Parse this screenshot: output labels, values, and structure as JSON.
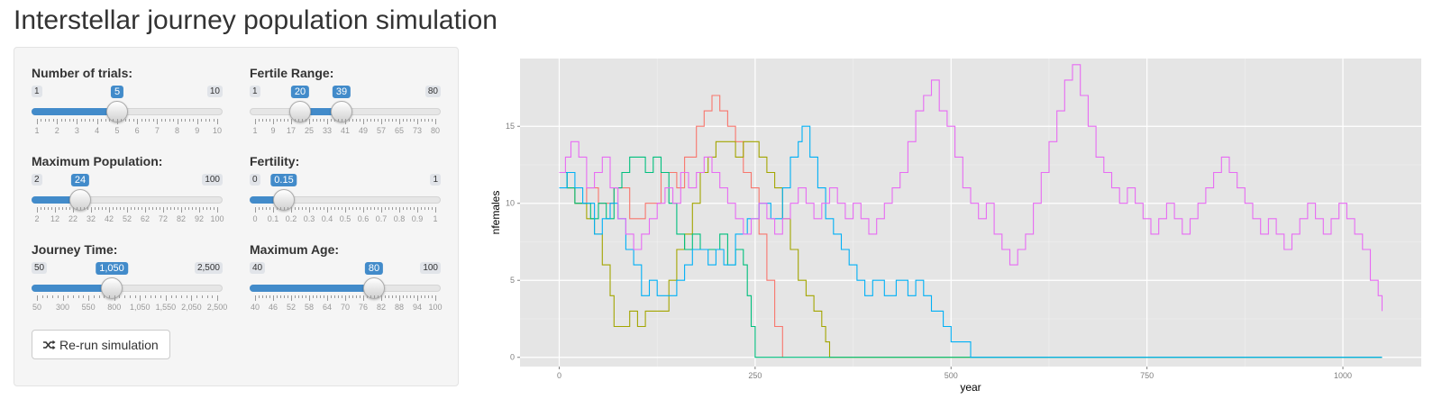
{
  "page": {
    "title": "Interstellar journey population simulation"
  },
  "controls": {
    "trials": {
      "label": "Number of trials:",
      "min_label": "1",
      "max_label": "10",
      "value_label": "5",
      "min": 1,
      "max": 10,
      "value": 5,
      "ticks": [
        "1",
        "2",
        "3",
        "4",
        "5",
        "6",
        "7",
        "8",
        "9",
        "10"
      ]
    },
    "fertile_range": {
      "label": "Fertile Range:",
      "min_label": "1",
      "max_label": "80",
      "value_low_label": "20",
      "value_high_label": "39",
      "min": 1,
      "max": 80,
      "value_low": 20,
      "value_high": 39,
      "ticks": [
        "1",
        "9",
        "17",
        "25",
        "33",
        "41",
        "49",
        "57",
        "65",
        "73",
        "80"
      ]
    },
    "max_population": {
      "label": "Maximum Population:",
      "min_label": "2",
      "max_label": "100",
      "value_label": "24",
      "min": 2,
      "max": 100,
      "value": 24,
      "ticks": [
        "2",
        "12",
        "22",
        "32",
        "42",
        "52",
        "62",
        "72",
        "82",
        "92",
        "100"
      ]
    },
    "fertility": {
      "label": "Fertility:",
      "min_label": "0",
      "max_label": "1",
      "value_label": "0.15",
      "min": 0,
      "max": 1,
      "value": 0.15,
      "ticks": [
        "0",
        "0.1",
        "0.2",
        "0.3",
        "0.4",
        "0.5",
        "0.6",
        "0.7",
        "0.8",
        "0.9",
        "1"
      ]
    },
    "journey_time": {
      "label": "Journey Time:",
      "min_label": "50",
      "max_label": "2,500",
      "value_label": "1,050",
      "min": 50,
      "max": 2500,
      "value": 1050,
      "ticks": [
        "50",
        "300",
        "550",
        "800",
        "1,050",
        "1,550",
        "2,050",
        "2,500"
      ]
    },
    "max_age": {
      "label": "Maximum Age:",
      "min_label": "40",
      "max_label": "100",
      "value_label": "80",
      "min": 40,
      "max": 100,
      "value": 80,
      "ticks": [
        "40",
        "46",
        "52",
        "58",
        "64",
        "70",
        "76",
        "82",
        "88",
        "94",
        "100"
      ]
    }
  },
  "rerun_button": {
    "label": "Re-run simulation",
    "icon": "shuffle-icon"
  },
  "accent_color": "#428bca",
  "chart_data": {
    "type": "line",
    "xlabel": "year",
    "ylabel": "nfemales",
    "xlim": [
      -50,
      1100
    ],
    "ylim": [
      -0.6,
      19.4
    ],
    "x_ticks": [
      0,
      250,
      500,
      750,
      1000
    ],
    "x_tick_labels": [
      "0",
      "250",
      "500",
      "750",
      "1000"
    ],
    "y_ticks": [
      0,
      5,
      10,
      15
    ],
    "y_tick_labels": [
      "0",
      "5",
      "10",
      "15"
    ],
    "grid": true,
    "legend": "none",
    "colors": [
      "#f8766d",
      "#a3a500",
      "#00bf7d",
      "#00b0f6",
      "#e76bf3"
    ],
    "series": [
      {
        "points": [
          [
            0,
            12
          ],
          [
            10,
            11
          ],
          [
            20,
            10
          ],
          [
            35,
            11
          ],
          [
            50,
            10
          ],
          [
            70,
            11
          ],
          [
            90,
            9
          ],
          [
            110,
            10
          ],
          [
            130,
            12
          ],
          [
            150,
            11
          ],
          [
            160,
            13
          ],
          [
            175,
            15
          ],
          [
            185,
            16
          ],
          [
            195,
            17
          ],
          [
            205,
            16
          ],
          [
            215,
            15
          ],
          [
            225,
            14
          ],
          [
            235,
            12
          ],
          [
            245,
            11
          ],
          [
            255,
            8
          ],
          [
            265,
            5
          ],
          [
            275,
            2
          ],
          [
            285,
            0
          ]
        ]
      },
      {
        "points": [
          [
            0,
            12
          ],
          [
            10,
            11
          ],
          [
            20,
            10
          ],
          [
            35,
            9
          ],
          [
            45,
            8
          ],
          [
            55,
            6
          ],
          [
            65,
            4
          ],
          [
            70,
            2
          ],
          [
            80,
            2
          ],
          [
            90,
            3
          ],
          [
            100,
            2
          ],
          [
            110,
            3
          ],
          [
            125,
            3
          ],
          [
            140,
            5
          ],
          [
            150,
            7
          ],
          [
            160,
            8
          ],
          [
            170,
            10
          ],
          [
            180,
            12
          ],
          [
            190,
            13
          ],
          [
            200,
            14
          ],
          [
            215,
            14
          ],
          [
            225,
            13
          ],
          [
            235,
            14
          ],
          [
            245,
            14
          ],
          [
            255,
            13
          ],
          [
            265,
            12
          ],
          [
            275,
            11
          ],
          [
            285,
            9
          ],
          [
            295,
            7
          ],
          [
            305,
            5
          ],
          [
            315,
            4
          ],
          [
            325,
            3
          ],
          [
            335,
            2
          ],
          [
            340,
            1
          ],
          [
            345,
            0
          ],
          [
            1050,
            0
          ]
        ]
      },
      {
        "points": [
          [
            0,
            12
          ],
          [
            10,
            11
          ],
          [
            20,
            10
          ],
          [
            30,
            10
          ],
          [
            40,
            9
          ],
          [
            50,
            10
          ],
          [
            60,
            9
          ],
          [
            70,
            11
          ],
          [
            80,
            12
          ],
          [
            90,
            13
          ],
          [
            100,
            13
          ],
          [
            110,
            12
          ],
          [
            120,
            13
          ],
          [
            130,
            12
          ],
          [
            140,
            10
          ],
          [
            150,
            8
          ],
          [
            160,
            7
          ],
          [
            170,
            8
          ],
          [
            180,
            7
          ],
          [
            195,
            7
          ],
          [
            205,
            8
          ],
          [
            215,
            6
          ],
          [
            225,
            7
          ],
          [
            235,
            6
          ],
          [
            240,
            4
          ],
          [
            245,
            2
          ],
          [
            250,
            0
          ],
          [
            1050,
            0
          ]
        ]
      },
      {
        "points": [
          [
            0,
            11
          ],
          [
            10,
            12
          ],
          [
            20,
            11
          ],
          [
            30,
            10
          ],
          [
            45,
            8
          ],
          [
            55,
            9
          ],
          [
            65,
            10
          ],
          [
            75,
            9
          ],
          [
            85,
            7
          ],
          [
            95,
            6
          ],
          [
            105,
            4
          ],
          [
            115,
            5
          ],
          [
            125,
            4
          ],
          [
            135,
            4
          ],
          [
            150,
            5
          ],
          [
            160,
            6
          ],
          [
            170,
            7
          ],
          [
            180,
            7
          ],
          [
            190,
            6
          ],
          [
            200,
            7
          ],
          [
            210,
            6
          ],
          [
            225,
            8
          ],
          [
            240,
            9
          ],
          [
            255,
            10
          ],
          [
            270,
            9
          ],
          [
            285,
            11
          ],
          [
            295,
            13
          ],
          [
            305,
            14
          ],
          [
            310,
            15
          ],
          [
            320,
            13
          ],
          [
            330,
            11
          ],
          [
            340,
            9
          ],
          [
            350,
            8
          ],
          [
            360,
            7
          ],
          [
            370,
            6
          ],
          [
            380,
            5
          ],
          [
            390,
            4
          ],
          [
            400,
            5
          ],
          [
            415,
            4
          ],
          [
            430,
            5
          ],
          [
            445,
            4
          ],
          [
            455,
            5
          ],
          [
            465,
            4
          ],
          [
            475,
            3
          ],
          [
            490,
            2
          ],
          [
            500,
            1
          ],
          [
            520,
            1
          ],
          [
            525,
            0
          ],
          [
            1050,
            0
          ]
        ]
      },
      {
        "points": [
          [
            0,
            12
          ],
          [
            8,
            13
          ],
          [
            15,
            14
          ],
          [
            25,
            13
          ],
          [
            35,
            11
          ],
          [
            45,
            12
          ],
          [
            55,
            13
          ],
          [
            65,
            11
          ],
          [
            75,
            9
          ],
          [
            85,
            8
          ],
          [
            95,
            7
          ],
          [
            105,
            8
          ],
          [
            115,
            9
          ],
          [
            125,
            10
          ],
          [
            135,
            11
          ],
          [
            145,
            10
          ],
          [
            155,
            12
          ],
          [
            165,
            11
          ],
          [
            175,
            12
          ],
          [
            185,
            13
          ],
          [
            195,
            12
          ],
          [
            205,
            11
          ],
          [
            215,
            10
          ],
          [
            225,
            9
          ],
          [
            235,
            8
          ],
          [
            245,
            9
          ],
          [
            255,
            10
          ],
          [
            265,
            9
          ],
          [
            275,
            8
          ],
          [
            285,
            9
          ],
          [
            295,
            10
          ],
          [
            305,
            11
          ],
          [
            315,
            10
          ],
          [
            325,
            9
          ],
          [
            335,
            10
          ],
          [
            345,
            11
          ],
          [
            355,
            10
          ],
          [
            365,
            9
          ],
          [
            375,
            10
          ],
          [
            385,
            9
          ],
          [
            395,
            8
          ],
          [
            405,
            9
          ],
          [
            415,
            10
          ],
          [
            425,
            11
          ],
          [
            435,
            12
          ],
          [
            445,
            14
          ],
          [
            455,
            16
          ],
          [
            465,
            17
          ],
          [
            475,
            18
          ],
          [
            485,
            16
          ],
          [
            495,
            15
          ],
          [
            505,
            13
          ],
          [
            515,
            11
          ],
          [
            525,
            10
          ],
          [
            535,
            9
          ],
          [
            545,
            10
          ],
          [
            555,
            8
          ],
          [
            565,
            7
          ],
          [
            575,
            6
          ],
          [
            585,
            7
          ],
          [
            595,
            8
          ],
          [
            605,
            10
          ],
          [
            615,
            12
          ],
          [
            625,
            14
          ],
          [
            635,
            16
          ],
          [
            645,
            18
          ],
          [
            655,
            19
          ],
          [
            665,
            17
          ],
          [
            675,
            15
          ],
          [
            685,
            13
          ],
          [
            695,
            12
          ],
          [
            705,
            11
          ],
          [
            715,
            10
          ],
          [
            725,
            11
          ],
          [
            735,
            10
          ],
          [
            745,
            9
          ],
          [
            755,
            8
          ],
          [
            765,
            9
          ],
          [
            775,
            10
          ],
          [
            785,
            9
          ],
          [
            795,
            8
          ],
          [
            805,
            9
          ],
          [
            815,
            10
          ],
          [
            825,
            11
          ],
          [
            835,
            12
          ],
          [
            845,
            13
          ],
          [
            855,
            12
          ],
          [
            865,
            11
          ],
          [
            875,
            10
          ],
          [
            885,
            9
          ],
          [
            895,
            8
          ],
          [
            905,
            9
          ],
          [
            915,
            8
          ],
          [
            925,
            7
          ],
          [
            935,
            8
          ],
          [
            945,
            9
          ],
          [
            955,
            10
          ],
          [
            965,
            9
          ],
          [
            975,
            8
          ],
          [
            985,
            9
          ],
          [
            995,
            10
          ],
          [
            1005,
            9
          ],
          [
            1015,
            8
          ],
          [
            1025,
            7
          ],
          [
            1035,
            5
          ],
          [
            1045,
            4
          ],
          [
            1050,
            3
          ]
        ]
      }
    ]
  }
}
